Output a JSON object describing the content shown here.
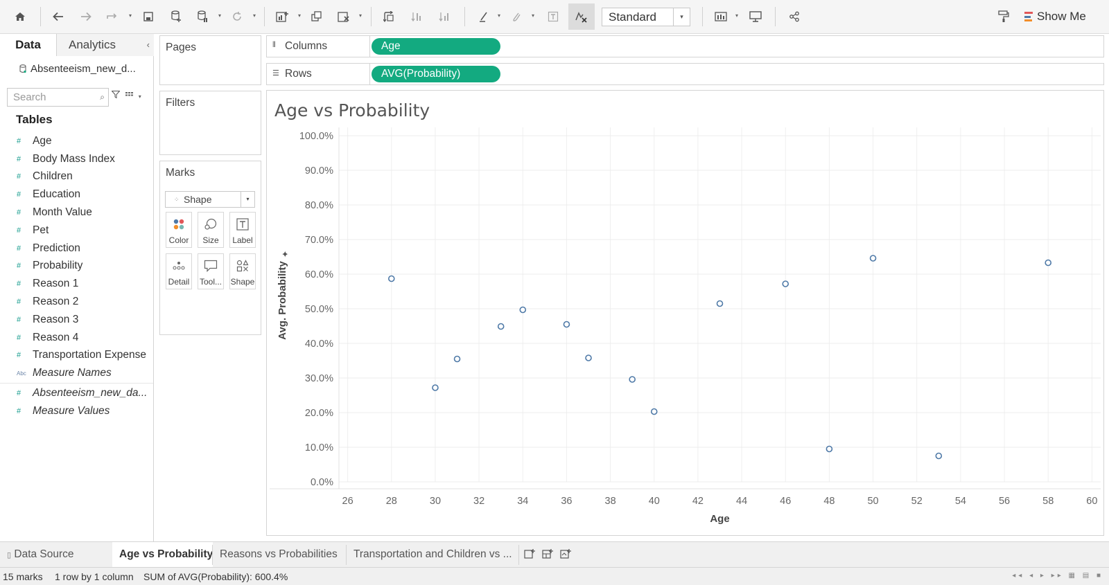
{
  "toolbar": {
    "fit_value": "Standard",
    "show_me_label": "Show Me",
    "show_me_colors": [
      "#e15759",
      "#4e79a7",
      "#f28e2b"
    ]
  },
  "data_pane": {
    "tabs": {
      "data": "Data",
      "analytics": "Analytics"
    },
    "datasource": "Absenteeism_new_d...",
    "search_placeholder": "Search",
    "tables_title": "Tables",
    "fields": [
      {
        "name": "Age",
        "type": "#"
      },
      {
        "name": "Body Mass Index",
        "type": "#"
      },
      {
        "name": "Children",
        "type": "#"
      },
      {
        "name": "Education",
        "type": "#"
      },
      {
        "name": "Month Value",
        "type": "#"
      },
      {
        "name": "Pet",
        "type": "#"
      },
      {
        "name": "Prediction",
        "type": "#"
      },
      {
        "name": "Probability",
        "type": "#"
      },
      {
        "name": "Reason 1",
        "type": "#"
      },
      {
        "name": "Reason 2",
        "type": "#"
      },
      {
        "name": "Reason 3",
        "type": "#"
      },
      {
        "name": "Reason 4",
        "type": "#"
      },
      {
        "name": "Transportation Expense",
        "type": "#"
      },
      {
        "name": "Measure Names",
        "type": "Abc"
      }
    ],
    "extra_fields": [
      {
        "name": "Absenteeism_new_da...",
        "type": "#"
      },
      {
        "name": "Measure Values",
        "type": "#"
      }
    ]
  },
  "cards": {
    "pages": "Pages",
    "filters": "Filters",
    "marks": "Marks",
    "mark_type": "Shape",
    "mark_buttons": [
      "Color",
      "Size",
      "Label",
      "Detail",
      "Tool...",
      "Shape"
    ]
  },
  "shelves": {
    "columns_label": "Columns",
    "columns_pill": "Age",
    "rows_label": "Rows",
    "rows_pill": "AVG(Probability)",
    "pill_color": "#13aa80"
  },
  "viz": {
    "title": "Age vs Probability"
  },
  "chart_data": {
    "type": "scatter",
    "title": "Age vs Probability",
    "xlabel": "Age",
    "ylabel": "Avg. Probability",
    "xlim": [
      25.6,
      60.4
    ],
    "ylim": [
      0,
      1.0
    ],
    "x_ticks": [
      26,
      28,
      30,
      32,
      34,
      36,
      38,
      40,
      42,
      44,
      46,
      48,
      50,
      52,
      54,
      56,
      58,
      60
    ],
    "y_ticks": [
      0,
      0.1,
      0.2,
      0.3,
      0.4,
      0.5,
      0.6,
      0.7,
      0.8,
      0.9,
      1.0
    ],
    "y_tick_labels": [
      "0.0%",
      "10.0%",
      "20.0%",
      "30.0%",
      "40.0%",
      "50.0%",
      "60.0%",
      "70.0%",
      "80.0%",
      "90.0%",
      "100.0%"
    ],
    "grid": true,
    "marker": "open-circle",
    "marker_color": "#4e79a7",
    "points": [
      {
        "x": 28,
        "y": 0.587
      },
      {
        "x": 30,
        "y": 0.272
      },
      {
        "x": 31,
        "y": 0.355
      },
      {
        "x": 33,
        "y": 0.449
      },
      {
        "x": 34,
        "y": 0.497
      },
      {
        "x": 36,
        "y": 0.455
      },
      {
        "x": 37,
        "y": 0.358
      },
      {
        "x": 39,
        "y": 0.296
      },
      {
        "x": 40,
        "y": 0.203
      },
      {
        "x": 43,
        "y": 0.515
      },
      {
        "x": 46,
        "y": 0.572
      },
      {
        "x": 48,
        "y": 0.095
      },
      {
        "x": 50,
        "y": 0.646
      },
      {
        "x": 53,
        "y": 0.075
      },
      {
        "x": 58,
        "y": 0.633
      }
    ]
  },
  "sheet_tabs": {
    "data_source": "Data Source",
    "tabs": [
      "Age vs Probability",
      "Reasons vs Probabilities",
      "Transportation and Children vs ..."
    ]
  },
  "status": {
    "marks": "15 marks",
    "dims": "1 row by 1 column",
    "sum": "SUM of AVG(Probability): 600.4%"
  }
}
